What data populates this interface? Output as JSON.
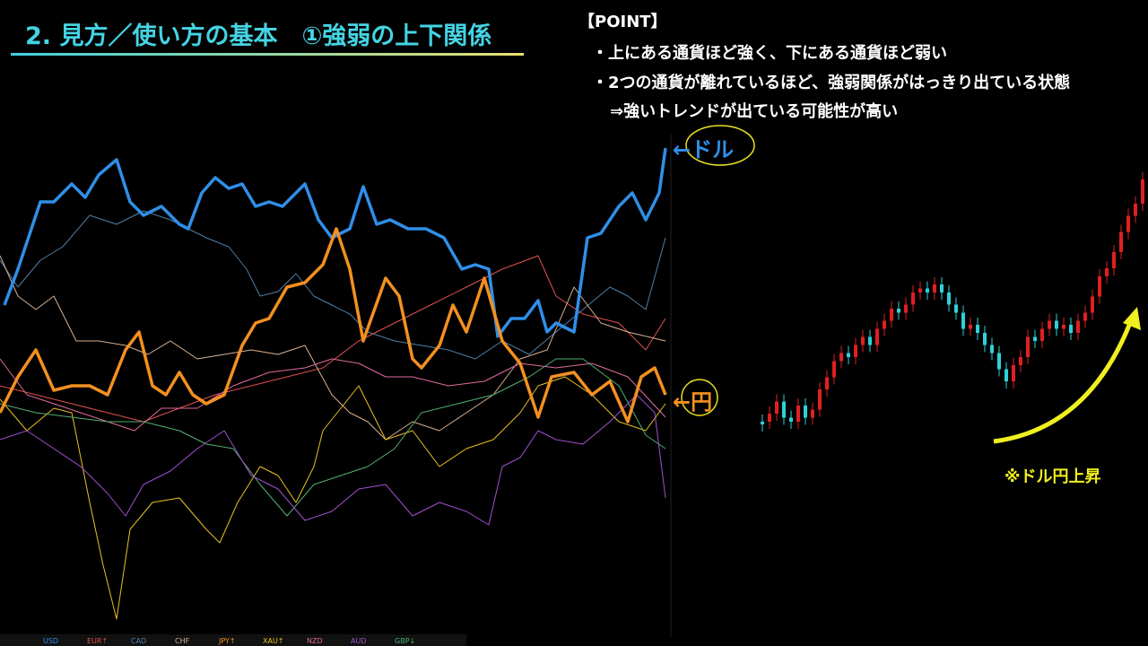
{
  "header": {
    "title": "2. 見方／使い方の基本　①強弱の上下関係"
  },
  "point": {
    "heading": "【POINT】",
    "bullets": [
      "・上にある通貨ほど強く、下にある通貨ほど弱い",
      "・2つの通貨が離れているほど、強弱関係がはっきり出ている状態",
      "⇒強いトレンドが出ている可能性が高い"
    ]
  },
  "labels": {
    "usd": "←ドル",
    "jpy": "←円",
    "trend": "※ドル円上昇"
  },
  "legend": [
    "USD",
    "EUR↑",
    "CAD",
    "CHF",
    "JPY↑",
    "XAU↑",
    "NZD",
    "AUD",
    "GBP↓"
  ]
}
